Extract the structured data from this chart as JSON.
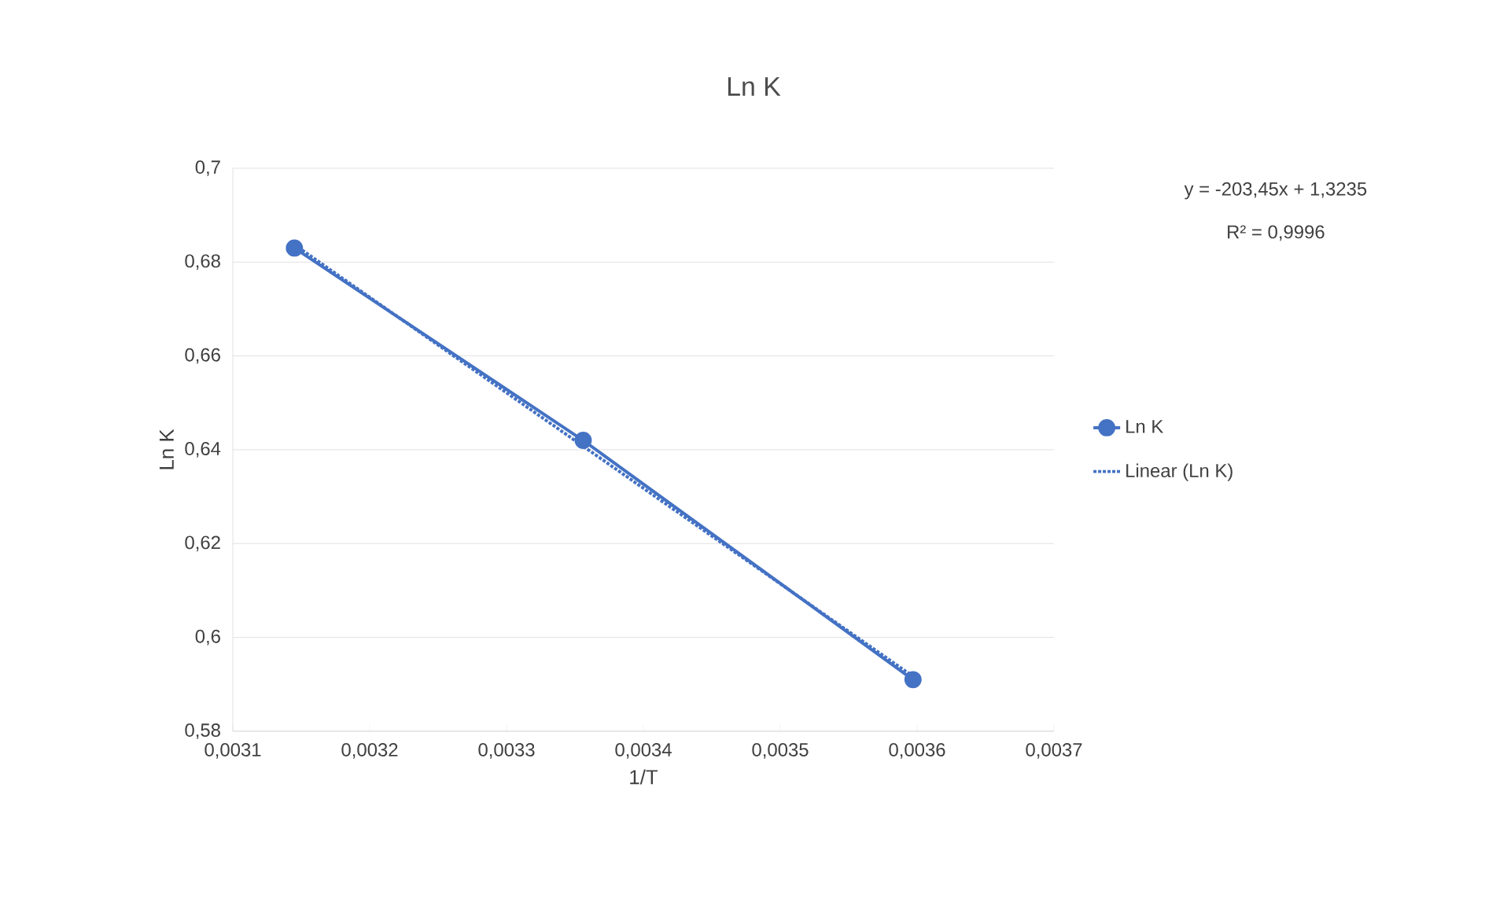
{
  "chart_data": {
    "type": "line",
    "title": "Ln K",
    "xlabel": "1/T",
    "ylabel": "Ln K",
    "xlim": [
      0.0031,
      0.0037
    ],
    "xticks": [
      {
        "value": 0.0031,
        "label": "0,0031"
      },
      {
        "value": 0.0032,
        "label": "0,0032"
      },
      {
        "value": 0.0033,
        "label": "0,0033"
      },
      {
        "value": 0.0034,
        "label": "0,0034"
      },
      {
        "value": 0.0035,
        "label": "0,0035"
      },
      {
        "value": 0.0036,
        "label": "0,0036"
      },
      {
        "value": 0.0037,
        "label": "0,0037"
      }
    ],
    "ylim": [
      0.58,
      0.7
    ],
    "yticks": [
      {
        "value": 0.58,
        "label": "0,58"
      },
      {
        "value": 0.6,
        "label": "0,6"
      },
      {
        "value": 0.62,
        "label": "0,62"
      },
      {
        "value": 0.64,
        "label": "0,64"
      },
      {
        "value": 0.66,
        "label": "0,66"
      },
      {
        "value": 0.68,
        "label": "0,68"
      },
      {
        "value": 0.7,
        "label": "0,7"
      }
    ],
    "grid": "y",
    "legend": "right",
    "series": [
      {
        "name": "Ln K",
        "color": "#4472c4",
        "marker": "circle",
        "line_style": "solid",
        "x": [
          0.003145,
          0.003356,
          0.003597
        ],
        "values": [
          0.683,
          0.642,
          0.591
        ]
      },
      {
        "name": "Linear (Ln K)",
        "color": "#4472c4",
        "marker": "none",
        "line_style": "dotted",
        "x": [
          0.003145,
          0.003597
        ],
        "values": [
          0.6837,
          0.5917
        ]
      }
    ],
    "annotations": [
      "y = -203,45x + 1,3235",
      "R² = 0,9996"
    ]
  }
}
